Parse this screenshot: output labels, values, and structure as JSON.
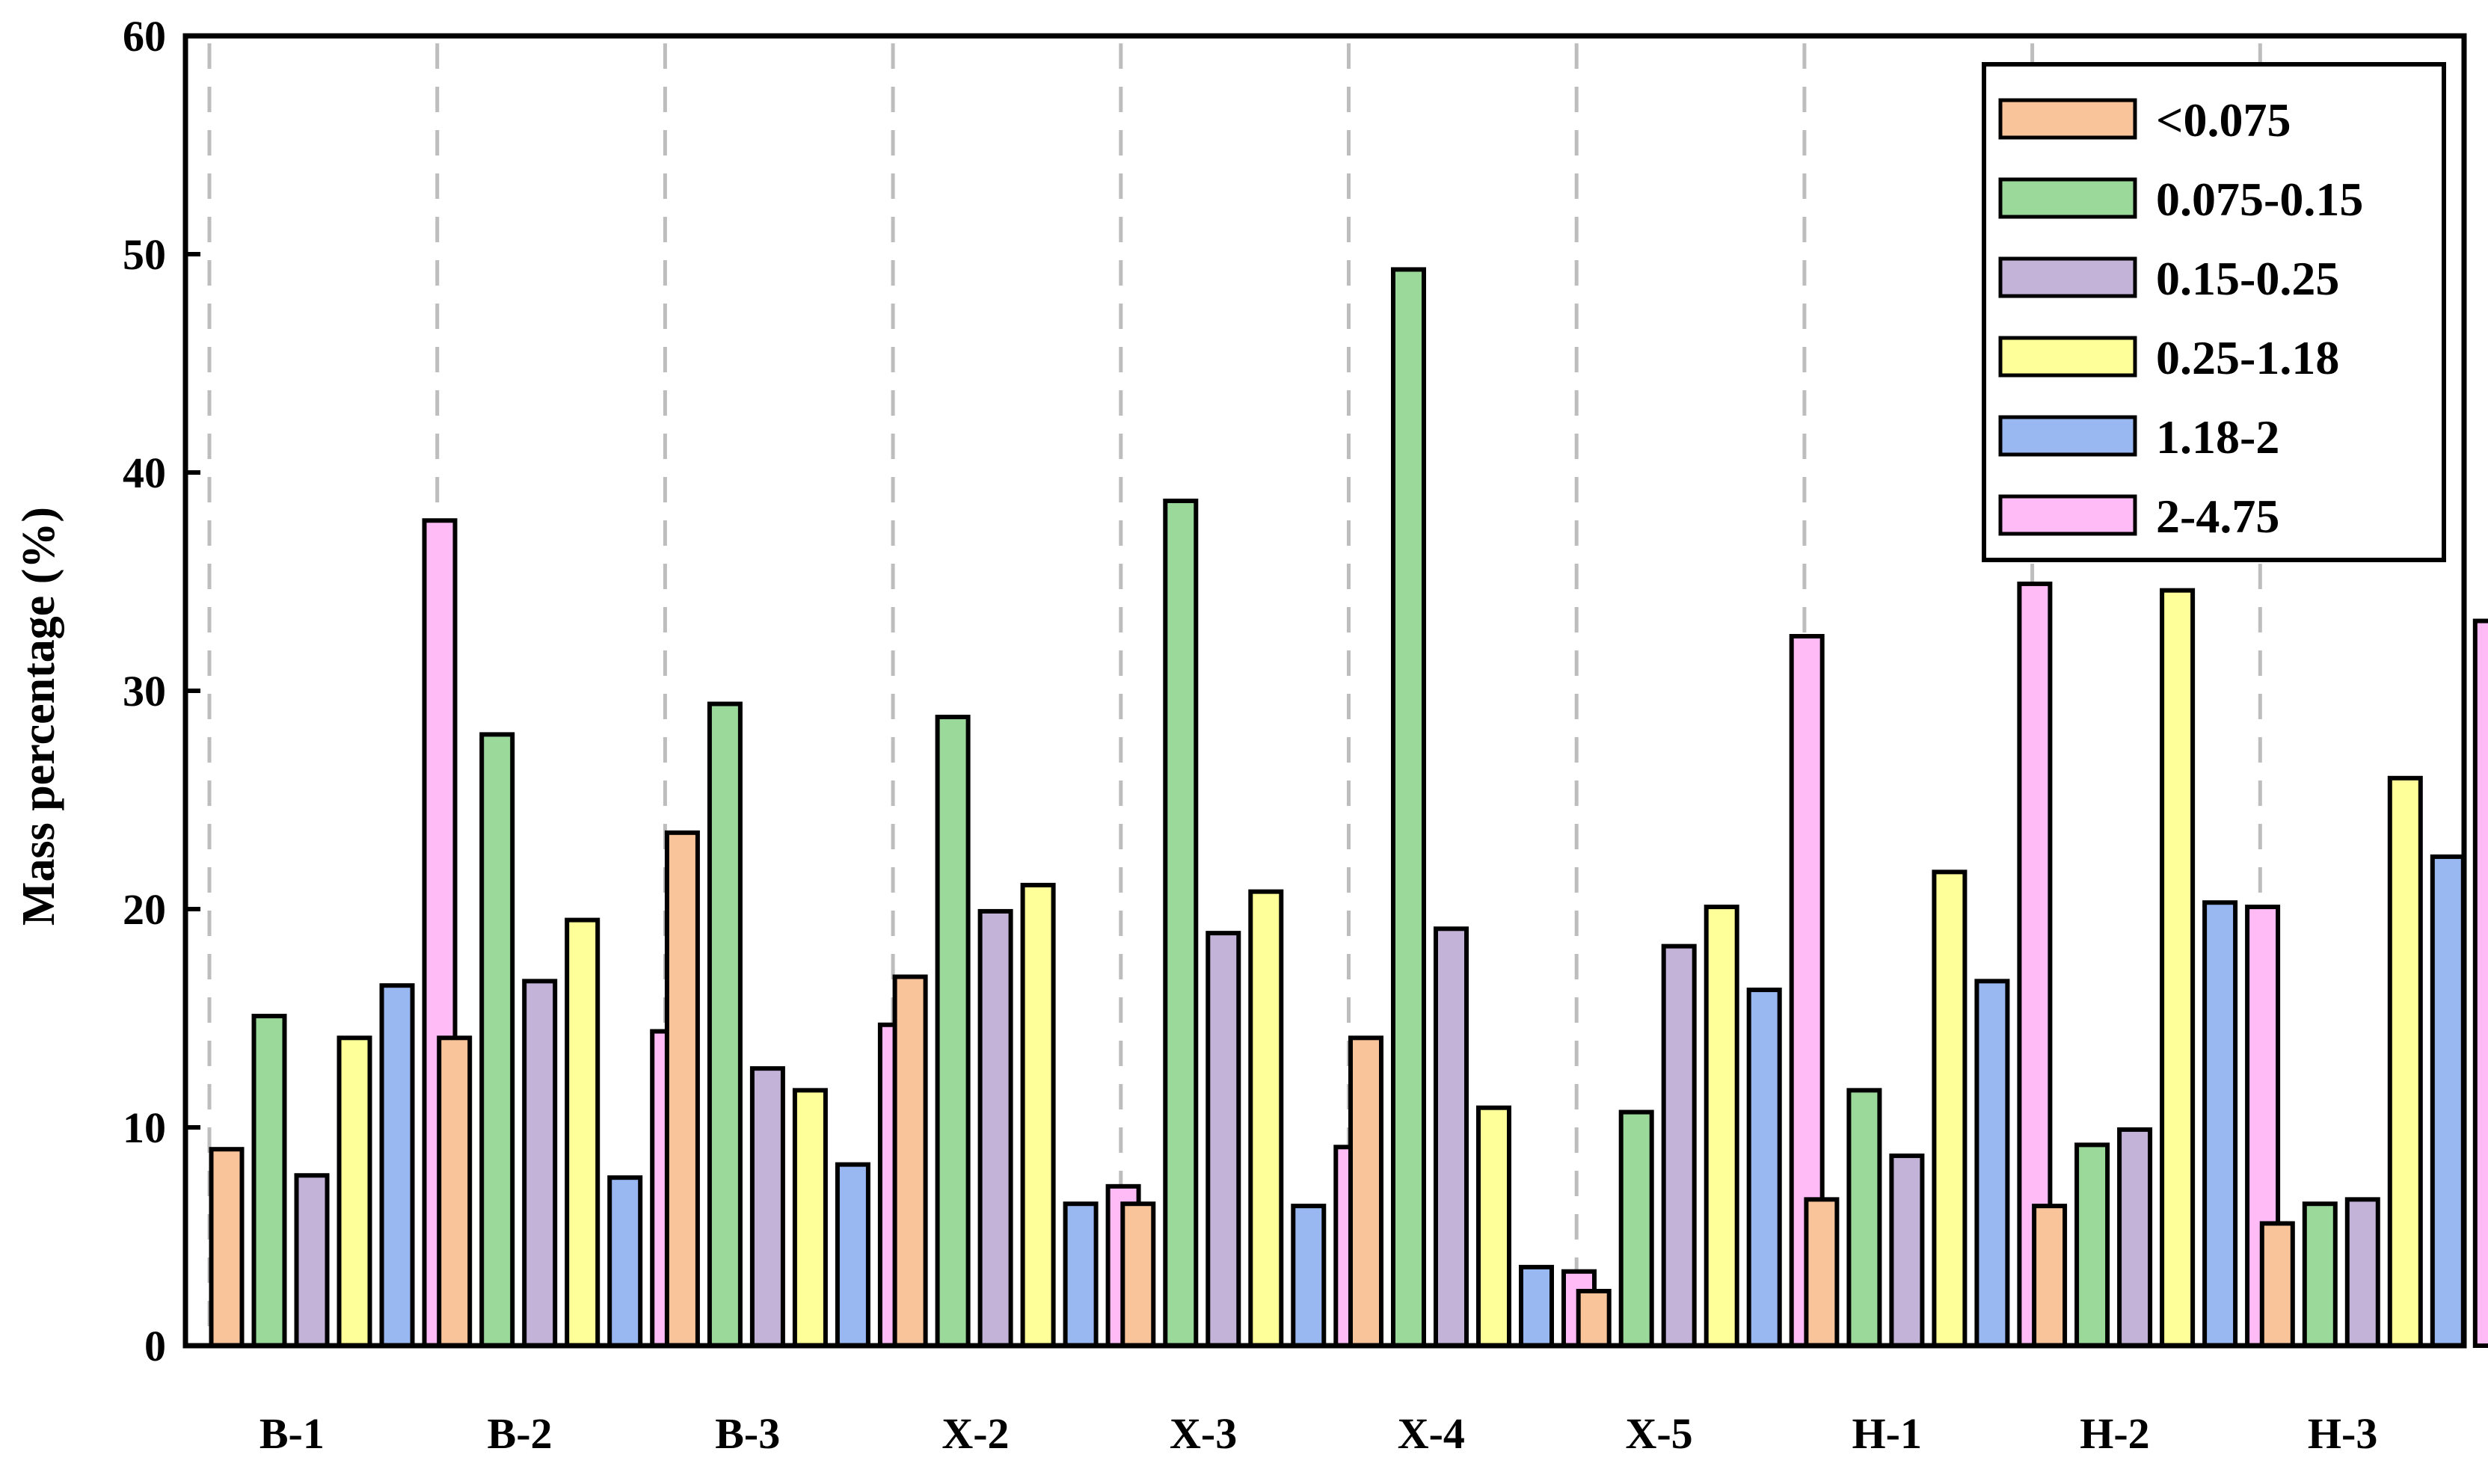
{
  "chart_data": {
    "type": "bar",
    "ylabel": "Mass percentage (%)",
    "xlabel": "",
    "ylim": [
      0,
      60
    ],
    "yticks": [
      0,
      10,
      20,
      30,
      40,
      50,
      60
    ],
    "grid": "vertical dashed separators between groups",
    "legend_position": "top-right",
    "categories": [
      "B-1",
      "B-2",
      "B-3",
      "X-2",
      "X-3",
      "X-4",
      "X-5",
      "H-1",
      "H-2",
      "H-3"
    ],
    "series": [
      {
        "name": "<0.075",
        "color": "#f9c49a",
        "values": [
          9.0,
          14.1,
          23.5,
          16.9,
          6.5,
          14.1,
          2.5,
          6.7,
          6.4,
          5.6
        ]
      },
      {
        "name": "0.075-0.15",
        "color": "#9bd99b",
        "values": [
          15.1,
          28.0,
          29.4,
          28.8,
          38.7,
          49.3,
          10.7,
          11.7,
          9.2,
          6.5
        ]
      },
      {
        "name": "0.15-0.25",
        "color": "#c3b3d9",
        "values": [
          7.8,
          16.7,
          12.7,
          19.9,
          18.9,
          19.1,
          18.3,
          8.7,
          9.9,
          6.7
        ]
      },
      {
        "name": "0.25-1.18",
        "color": "#ffff99",
        "values": [
          14.1,
          19.5,
          11.7,
          21.1,
          20.8,
          10.9,
          20.1,
          21.7,
          34.6,
          26.0
        ]
      },
      {
        "name": "1.18-2",
        "color": "#99b8f2",
        "values": [
          16.5,
          7.7,
          8.3,
          6.5,
          6.4,
          3.6,
          16.3,
          16.7,
          20.3,
          22.4
        ]
      },
      {
        "name": "2-4.75",
        "color": "#ffbbf6",
        "values": [
          37.8,
          14.4,
          14.7,
          7.3,
          9.1,
          3.4,
          32.5,
          34.9,
          20.1,
          33.2
        ]
      }
    ]
  }
}
